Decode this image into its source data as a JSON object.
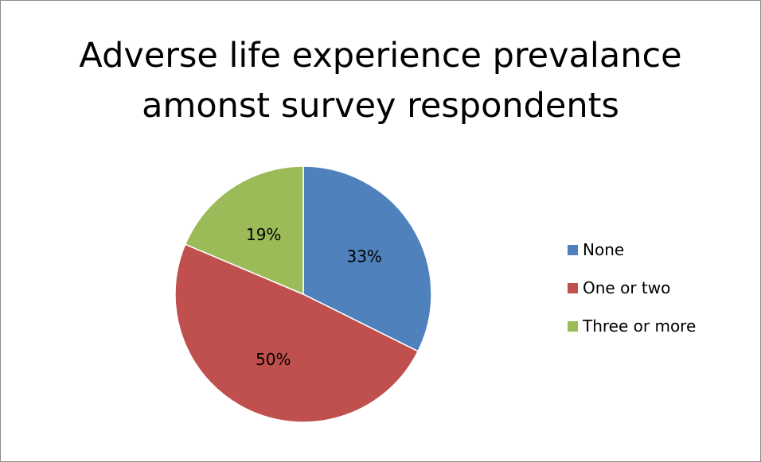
{
  "chart_data": {
    "type": "pie",
    "title_lines": [
      "Adverse life experience prevalance",
      "amonst survey respondents"
    ],
    "categories": [
      "None",
      "One or two",
      "Three or more"
    ],
    "values": [
      33,
      50,
      19
    ],
    "labels": [
      "33%",
      "50%",
      "19%"
    ],
    "colors": [
      "#4f81bd",
      "#c0504d",
      "#9bbb59"
    ],
    "legend_position": "right"
  }
}
